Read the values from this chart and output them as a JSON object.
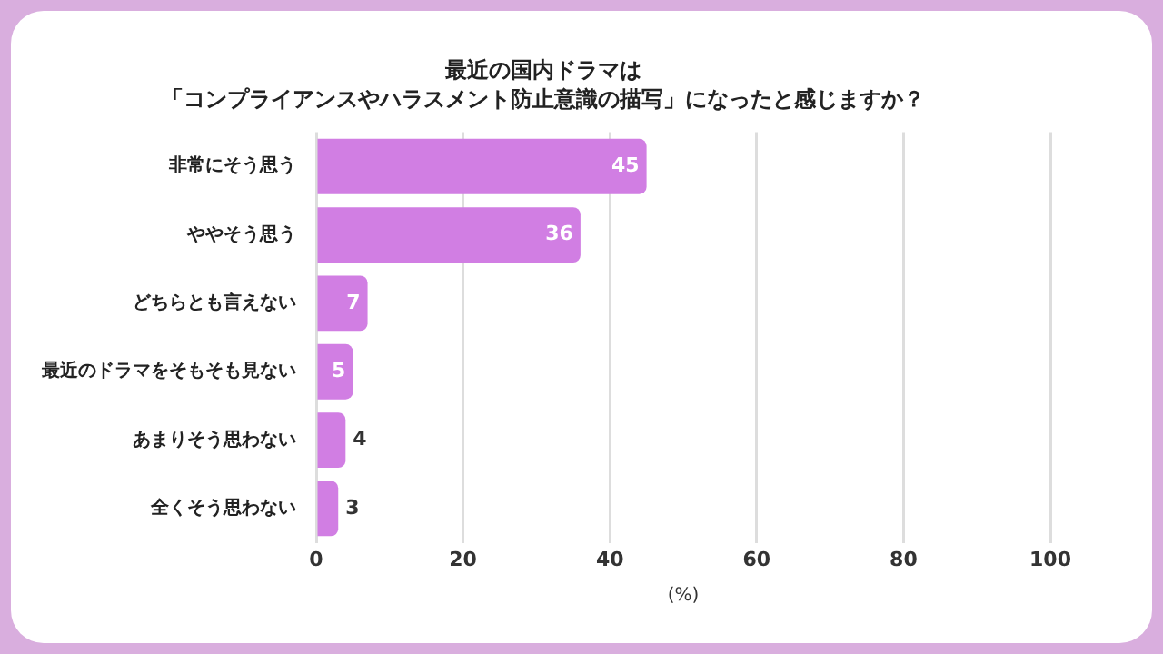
{
  "chart_data": {
    "type": "bar",
    "orientation": "horizontal",
    "title": "最近の国内ドラマは",
    "subtitle": "「コンプライアンスやハラスメント防止意識の描写」になったと感じますか？",
    "xlabel": "(%)",
    "categories": [
      "非常にそう思う",
      "ややそう思う",
      "どちらとも言えない",
      "最近のドラマをそもそも見ない",
      "あまりそう思わない",
      "全くそう思わない"
    ],
    "values": [
      45,
      36,
      7,
      5,
      4,
      3
    ],
    "color": "#d17ee3",
    "xlim": [
      0,
      100
    ],
    "xticks": [
      0,
      20,
      40,
      60,
      80,
      100
    ],
    "grid": "x",
    "data_labels": true,
    "legend": false
  }
}
